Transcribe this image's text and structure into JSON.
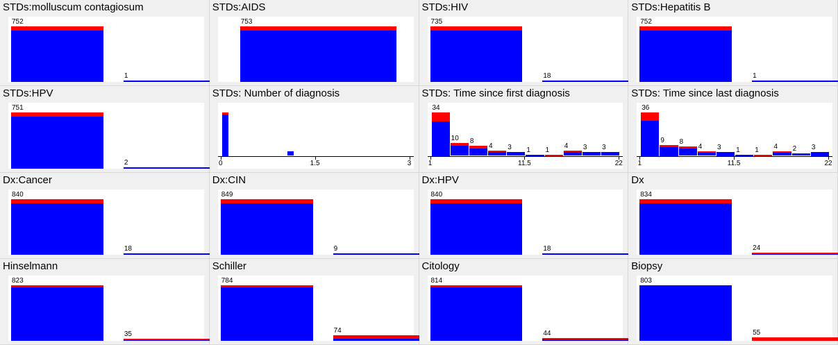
{
  "colors": {
    "positive": "#ff0000",
    "negative": "#0000ff",
    "plot_bg": "#ffffff",
    "panel_bg": "#f0f0f0"
  },
  "panels": [
    {
      "title": "STDs:molluscum contagiosum",
      "type": "binary",
      "bars": [
        {
          "label": "752",
          "total": 752,
          "red": 55
        },
        {
          "label": "1",
          "total": 1,
          "red": 0
        }
      ]
    },
    {
      "title": "STDs:AIDS",
      "type": "single",
      "bars": [
        {
          "label": "753",
          "total": 753,
          "red": 55
        }
      ]
    },
    {
      "title": "STDs:HIV",
      "type": "binary",
      "bars": [
        {
          "label": "735",
          "total": 735,
          "red": 55
        },
        {
          "label": "18",
          "total": 18,
          "red": 0
        }
      ]
    },
    {
      "title": "STDs:Hepatitis B",
      "type": "binary",
      "bars": [
        {
          "label": "752",
          "total": 752,
          "red": 55
        },
        {
          "label": "1",
          "total": 1,
          "red": 0
        }
      ]
    },
    {
      "title": "STDs:HPV",
      "type": "binary",
      "bars": [
        {
          "label": "751",
          "total": 751,
          "red": 55
        },
        {
          "label": "2",
          "total": 2,
          "red": 0
        }
      ]
    },
    {
      "title": "STDs: Number of diagnosis",
      "type": "hist",
      "bars": [
        {
          "label": "",
          "total": 55,
          "red": 2
        },
        {
          "label": "",
          "total": 6,
          "red": 0
        }
      ],
      "bar_positions": [
        0,
        0.25
      ],
      "ticks": [
        "0",
        "1.5",
        "3"
      ]
    },
    {
      "title": "STDs: Time since first diagnosis",
      "type": "hist",
      "bars": [
        {
          "label": "34",
          "total": 34,
          "red": 7
        },
        {
          "label": "10",
          "total": 10,
          "red": 2
        },
        {
          "label": "8",
          "total": 8,
          "red": 2
        },
        {
          "label": "4",
          "total": 4,
          "red": 1
        },
        {
          "label": "3",
          "total": 3,
          "red": 0
        },
        {
          "label": "1",
          "total": 1,
          "red": 0
        },
        {
          "label": "1",
          "total": 1,
          "red": 1
        },
        {
          "label": "4",
          "total": 4,
          "red": 1
        },
        {
          "label": "3",
          "total": 3,
          "red": 0
        },
        {
          "label": "3",
          "total": 3,
          "red": 0
        }
      ],
      "ticks": [
        "1",
        "11.5",
        "22"
      ]
    },
    {
      "title": "STDs: Time since last diagnosis",
      "type": "hist",
      "bars": [
        {
          "label": "36",
          "total": 36,
          "red": 7
        },
        {
          "label": "9",
          "total": 9,
          "red": 2
        },
        {
          "label": "8",
          "total": 8,
          "red": 2
        },
        {
          "label": "4",
          "total": 4,
          "red": 1
        },
        {
          "label": "3",
          "total": 3,
          "red": 0
        },
        {
          "label": "1",
          "total": 1,
          "red": 0
        },
        {
          "label": "1",
          "total": 1,
          "red": 1
        },
        {
          "label": "4",
          "total": 4,
          "red": 1
        },
        {
          "label": "2",
          "total": 2,
          "red": 0
        },
        {
          "label": "3",
          "total": 3,
          "red": 0
        }
      ],
      "ticks": [
        "1",
        "11.5",
        "22"
      ]
    },
    {
      "title": "Dx:Cancer",
      "type": "binary",
      "bars": [
        {
          "label": "840",
          "total": 840,
          "red": 55
        },
        {
          "label": "18",
          "total": 18,
          "red": 0
        }
      ]
    },
    {
      "title": "Dx:CIN",
      "type": "binary",
      "bars": [
        {
          "label": "849",
          "total": 849,
          "red": 55
        },
        {
          "label": "9",
          "total": 9,
          "red": 0
        }
      ]
    },
    {
      "title": "Dx:HPV",
      "type": "binary",
      "bars": [
        {
          "label": "840",
          "total": 840,
          "red": 55
        },
        {
          "label": "18",
          "total": 18,
          "red": 0
        }
      ]
    },
    {
      "title": "Dx",
      "type": "binary",
      "bars": [
        {
          "label": "834",
          "total": 834,
          "red": 55
        },
        {
          "label": "24",
          "total": 24,
          "red": 6
        }
      ]
    },
    {
      "title": "Hinselmann",
      "type": "binary",
      "bars": [
        {
          "label": "823",
          "total": 823,
          "red": 20
        },
        {
          "label": "35",
          "total": 35,
          "red": 15
        }
      ]
    },
    {
      "title": "Schiller",
      "type": "binary",
      "bars": [
        {
          "label": "784",
          "total": 784,
          "red": 16
        },
        {
          "label": "74",
          "total": 74,
          "red": 40
        }
      ]
    },
    {
      "title": "Citology",
      "type": "binary",
      "bars": [
        {
          "label": "814",
          "total": 814,
          "red": 30
        },
        {
          "label": "44",
          "total": 44,
          "red": 10
        }
      ]
    },
    {
      "title": "Biopsy",
      "type": "binary",
      "bars": [
        {
          "label": "803",
          "total": 803,
          "red": 0
        },
        {
          "label": "55",
          "total": 55,
          "red": 55
        }
      ]
    }
  ]
}
